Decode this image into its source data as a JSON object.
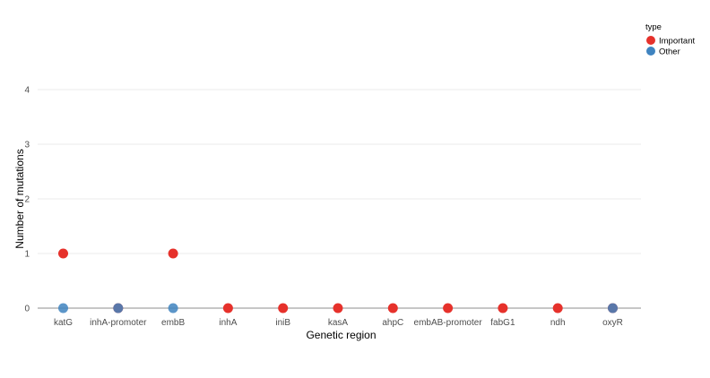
{
  "chart_data": {
    "type": "scatter",
    "title": "",
    "xlabel": "Genetic region",
    "ylabel": "Number of mutations",
    "categories": [
      "katG",
      "inhA-promoter",
      "embB",
      "inhA",
      "iniB",
      "kasA",
      "ahpC",
      "embAB-promoter",
      "fabG1",
      "ndh",
      "oxyR"
    ],
    "y_ticks": [
      "0",
      "1",
      "2",
      "3",
      "4"
    ],
    "ylim": [
      0,
      4
    ],
    "grid": true,
    "legend": {
      "title": "type",
      "position": "top-right"
    },
    "series": [
      {
        "name": "Important",
        "color": "#e6312b",
        "values": [
          1,
          0,
          1,
          0,
          0,
          0,
          0,
          0,
          0,
          0,
          0
        ]
      },
      {
        "name": "Other",
        "color": "#3f84c0",
        "values": [
          0,
          0,
          0,
          null,
          null,
          null,
          null,
          null,
          null,
          null,
          0
        ]
      }
    ]
  }
}
